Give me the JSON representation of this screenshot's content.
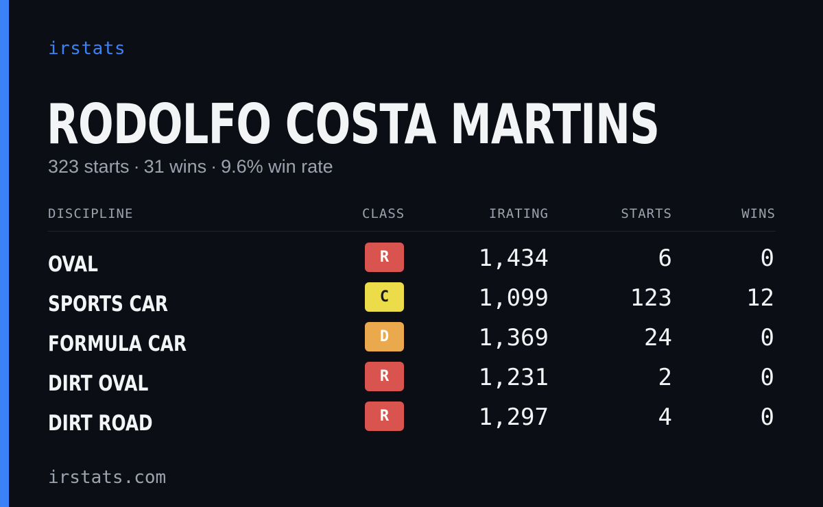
{
  "brand": "irstats",
  "driver": {
    "name": "RODOLFO COSTA MARTINS",
    "summary": {
      "starts": "323 starts",
      "wins": "31 wins",
      "win_rate": "9.6% win rate",
      "separator": "·"
    }
  },
  "table": {
    "headers": {
      "discipline": "DISCIPLINE",
      "class": "CLASS",
      "irating": "IRATING",
      "starts": "STARTS",
      "wins": "WINS"
    },
    "rows": [
      {
        "discipline": "OVAL",
        "class": "R",
        "class_color": "#d9534f",
        "class_text_color": "#ffffff",
        "irating": "1,434",
        "starts": "6",
        "wins": "0"
      },
      {
        "discipline": "SPORTS CAR",
        "class": "C",
        "class_color": "#ecdc4a",
        "class_text_color": "#1a1a1a",
        "irating": "1,099",
        "starts": "123",
        "wins": "12"
      },
      {
        "discipline": "FORMULA CAR",
        "class": "D",
        "class_color": "#eba94d",
        "class_text_color": "#ffffff",
        "irating": "1,369",
        "starts": "24",
        "wins": "0"
      },
      {
        "discipline": "DIRT OVAL",
        "class": "R",
        "class_color": "#d9534f",
        "class_text_color": "#ffffff",
        "irating": "1,231",
        "starts": "2",
        "wins": "0"
      },
      {
        "discipline": "DIRT ROAD",
        "class": "R",
        "class_color": "#d9534f",
        "class_text_color": "#ffffff",
        "irating": "1,297",
        "starts": "4",
        "wins": "0"
      }
    ]
  },
  "footer": "irstats.com",
  "colors": {
    "background": "#0b0e14",
    "accent": "#3b82f6",
    "text": "#f3f4f6",
    "muted": "#9ca3af"
  }
}
